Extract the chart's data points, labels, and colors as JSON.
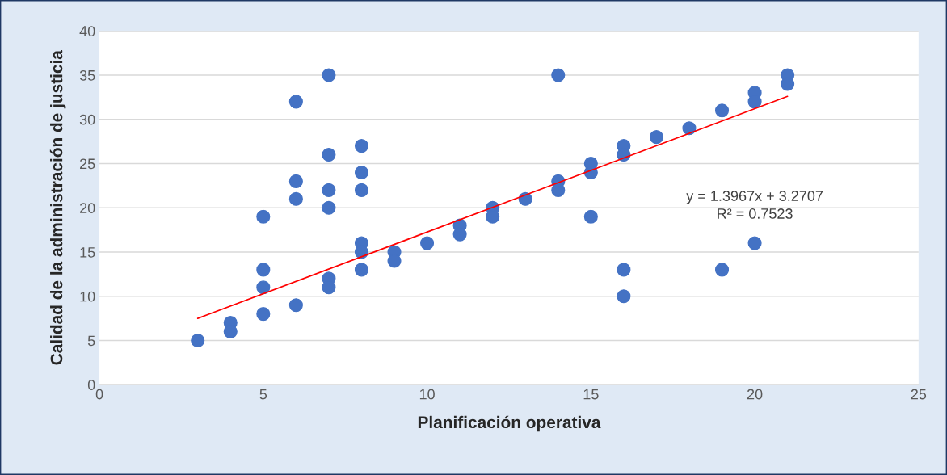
{
  "chart_data": {
    "type": "scatter",
    "xlabel": "Planificación operativa",
    "ylabel": "Calidad de la administración de justicia",
    "xlim": [
      0,
      25
    ],
    "xticks": [
      0,
      5,
      10,
      15,
      20,
      25
    ],
    "ylim": [
      0,
      40
    ],
    "yticks": [
      0,
      5,
      10,
      15,
      20,
      25,
      30,
      35,
      40
    ],
    "grid": "y",
    "series": [
      {
        "marker": "circle",
        "color": "#4472c4",
        "x": [
          3,
          4,
          4,
          5,
          5,
          5,
          5,
          6,
          6,
          6,
          6,
          7,
          7,
          7,
          7,
          7,
          7,
          8,
          8,
          8,
          8,
          8,
          8,
          9,
          9,
          10,
          11,
          11,
          12,
          12,
          13,
          14,
          14,
          14,
          15,
          15,
          15,
          16,
          16,
          16,
          16,
          17,
          18,
          19,
          19,
          20,
          20,
          20,
          21,
          21
        ],
        "values": [
          5,
          7,
          6,
          19,
          13,
          11,
          8,
          32,
          23,
          21,
          9,
          35,
          26,
          22,
          20,
          12,
          11,
          27,
          24,
          22,
          16,
          15,
          13,
          15,
          14,
          16,
          18,
          17,
          20,
          19,
          21,
          35,
          23,
          22,
          25,
          24,
          19,
          27,
          26,
          13,
          10,
          28,
          29,
          31,
          13,
          33,
          32,
          16,
          35,
          34
        ]
      },
      {
        "type": "line",
        "color": "#ff0000",
        "line_style": "solid",
        "marker": "none",
        "x": [
          3,
          21
        ],
        "values": [
          7.5,
          32.6
        ]
      }
    ],
    "annotations": [
      "y = 1.3967x + 3.2707",
      "R² = 0.7523"
    ]
  }
}
